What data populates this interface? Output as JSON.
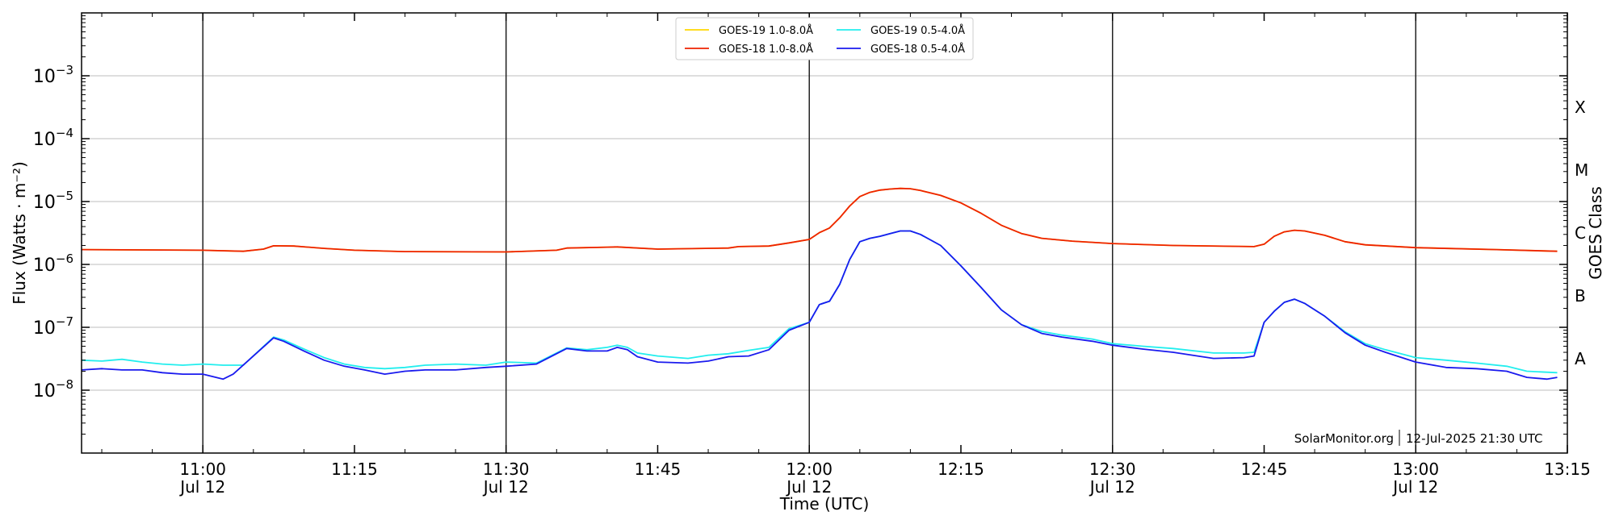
{
  "chart_data": {
    "type": "line",
    "xlabel": "Time (UTC)",
    "ylabel": "Flux (Watts · m⁻²)",
    "right_label": "GOES Class",
    "xlim": [
      "10:48",
      "13:15"
    ],
    "ylim": [
      1e-09,
      0.01
    ],
    "y_scale": "log",
    "grid": "horizontal",
    "legend_position": "top-center",
    "x_ticks": [
      {
        "time": "11:00",
        "date": "Jul 12"
      },
      {
        "time": "11:15",
        "date": ""
      },
      {
        "time": "11:30",
        "date": "Jul 12"
      },
      {
        "time": "11:45",
        "date": ""
      },
      {
        "time": "12:00",
        "date": "Jul 12"
      },
      {
        "time": "12:15",
        "date": ""
      },
      {
        "time": "12:30",
        "date": "Jul 12"
      },
      {
        "time": "12:45",
        "date": ""
      },
      {
        "time": "13:00",
        "date": "Jul 12"
      },
      {
        "time": "13:15",
        "date": ""
      }
    ],
    "y_ticks": [
      {
        "value": 1e-08,
        "label": "10",
        "exp": "−8"
      },
      {
        "value": 1e-07,
        "label": "10",
        "exp": "−7"
      },
      {
        "value": 1e-06,
        "label": "10",
        "exp": "−6"
      },
      {
        "value": 1e-05,
        "label": "10",
        "exp": "−5"
      },
      {
        "value": 0.0001,
        "label": "10",
        "exp": "−4"
      },
      {
        "value": 0.001,
        "label": "10",
        "exp": "−3"
      }
    ],
    "goes_classes": [
      {
        "label": "A",
        "value": 1e-08
      },
      {
        "label": "B",
        "value": 1e-07
      },
      {
        "label": "C",
        "value": 1e-06
      },
      {
        "label": "M",
        "value": 1e-05
      },
      {
        "label": "X",
        "value": 0.0001
      }
    ],
    "vertical_lines": [
      "11:00",
      "11:30",
      "12:00",
      "12:30",
      "13:00"
    ],
    "credit": "SolarMonitor.org",
    "credit_date": "12-Jul-2025 21:30 UTC",
    "series": [
      {
        "name": "GOES-19 1.0-8.0Å",
        "color": "#ffd700",
        "points": [
          [
            "10:48",
            1.72e-06
          ],
          [
            "11:00",
            1.68e-06
          ],
          [
            "11:04",
            1.62e-06
          ],
          [
            "11:06",
            1.75e-06
          ],
          [
            "11:07",
            1.98e-06
          ],
          [
            "11:09",
            1.96e-06
          ],
          [
            "11:12",
            1.8e-06
          ],
          [
            "11:15",
            1.68e-06
          ],
          [
            "11:20",
            1.6e-06
          ],
          [
            "11:30",
            1.58e-06
          ],
          [
            "11:35",
            1.68e-06
          ],
          [
            "11:36",
            1.82e-06
          ],
          [
            "11:40",
            1.88e-06
          ],
          [
            "11:41",
            1.9e-06
          ],
          [
            "11:45",
            1.75e-06
          ],
          [
            "11:52",
            1.82e-06
          ],
          [
            "11:53",
            1.92e-06
          ],
          [
            "11:56",
            1.96e-06
          ],
          [
            "11:58",
            2.2e-06
          ],
          [
            "12:00",
            2.5e-06
          ],
          [
            "12:01",
            3.2e-06
          ],
          [
            "12:02",
            3.8e-06
          ],
          [
            "12:03",
            5.5e-06
          ],
          [
            "12:04",
            8.5e-06
          ],
          [
            "12:05",
            1.2e-05
          ],
          [
            "12:06",
            1.4e-05
          ],
          [
            "12:07",
            1.52e-05
          ],
          [
            "12:08",
            1.58e-05
          ],
          [
            "12:09",
            1.62e-05
          ],
          [
            "12:10",
            1.6e-05
          ],
          [
            "12:11",
            1.5e-05
          ],
          [
            "12:13",
            1.25e-05
          ],
          [
            "12:15",
            9.5e-06
          ],
          [
            "12:17",
            6.5e-06
          ],
          [
            "12:19",
            4.2e-06
          ],
          [
            "12:21",
            3.1e-06
          ],
          [
            "12:23",
            2.6e-06
          ],
          [
            "12:26",
            2.35e-06
          ],
          [
            "12:30",
            2.15e-06
          ],
          [
            "12:36",
            2e-06
          ],
          [
            "12:44",
            1.92e-06
          ],
          [
            "12:45",
            2.1e-06
          ],
          [
            "12:46",
            2.8e-06
          ],
          [
            "12:47",
            3.3e-06
          ],
          [
            "12:48",
            3.5e-06
          ],
          [
            "12:49",
            3.4e-06
          ],
          [
            "12:51",
            2.9e-06
          ],
          [
            "12:53",
            2.3e-06
          ],
          [
            "12:55",
            2.05e-06
          ],
          [
            "13:00",
            1.85e-06
          ],
          [
            "13:08",
            1.72e-06
          ],
          [
            "13:14",
            1.62e-06
          ]
        ]
      },
      {
        "name": "GOES-18 1.0-8.0Å",
        "color": "#ee2200",
        "points": [
          [
            "10:48",
            1.72e-06
          ],
          [
            "11:00",
            1.68e-06
          ],
          [
            "11:04",
            1.62e-06
          ],
          [
            "11:06",
            1.75e-06
          ],
          [
            "11:07",
            1.98e-06
          ],
          [
            "11:09",
            1.96e-06
          ],
          [
            "11:12",
            1.8e-06
          ],
          [
            "11:15",
            1.68e-06
          ],
          [
            "11:20",
            1.6e-06
          ],
          [
            "11:30",
            1.58e-06
          ],
          [
            "11:35",
            1.68e-06
          ],
          [
            "11:36",
            1.82e-06
          ],
          [
            "11:40",
            1.88e-06
          ],
          [
            "11:41",
            1.9e-06
          ],
          [
            "11:45",
            1.75e-06
          ],
          [
            "11:52",
            1.82e-06
          ],
          [
            "11:53",
            1.92e-06
          ],
          [
            "11:56",
            1.96e-06
          ],
          [
            "11:58",
            2.2e-06
          ],
          [
            "12:00",
            2.5e-06
          ],
          [
            "12:01",
            3.2e-06
          ],
          [
            "12:02",
            3.8e-06
          ],
          [
            "12:03",
            5.5e-06
          ],
          [
            "12:04",
            8.5e-06
          ],
          [
            "12:05",
            1.2e-05
          ],
          [
            "12:06",
            1.4e-05
          ],
          [
            "12:07",
            1.52e-05
          ],
          [
            "12:08",
            1.58e-05
          ],
          [
            "12:09",
            1.62e-05
          ],
          [
            "12:10",
            1.6e-05
          ],
          [
            "12:11",
            1.5e-05
          ],
          [
            "12:13",
            1.25e-05
          ],
          [
            "12:15",
            9.5e-06
          ],
          [
            "12:17",
            6.5e-06
          ],
          [
            "12:19",
            4.2e-06
          ],
          [
            "12:21",
            3.1e-06
          ],
          [
            "12:23",
            2.6e-06
          ],
          [
            "12:26",
            2.35e-06
          ],
          [
            "12:30",
            2.15e-06
          ],
          [
            "12:36",
            2e-06
          ],
          [
            "12:44",
            1.92e-06
          ],
          [
            "12:45",
            2.1e-06
          ],
          [
            "12:46",
            2.8e-06
          ],
          [
            "12:47",
            3.3e-06
          ],
          [
            "12:48",
            3.5e-06
          ],
          [
            "12:49",
            3.4e-06
          ],
          [
            "12:51",
            2.9e-06
          ],
          [
            "12:53",
            2.3e-06
          ],
          [
            "12:55",
            2.05e-06
          ],
          [
            "13:00",
            1.85e-06
          ],
          [
            "13:08",
            1.72e-06
          ],
          [
            "13:14",
            1.62e-06
          ]
        ]
      },
      {
        "name": "GOES-19 0.5-4.0Å",
        "color": "#22eeee",
        "points": [
          [
            "10:48",
            3e-08
          ],
          [
            "10:50",
            2.9e-08
          ],
          [
            "10:52",
            3.1e-08
          ],
          [
            "10:54",
            2.8e-08
          ],
          [
            "10:56",
            2.6e-08
          ],
          [
            "10:58",
            2.5e-08
          ],
          [
            "11:00",
            2.6e-08
          ],
          [
            "11:02",
            2.5e-08
          ],
          [
            "11:04",
            2.5e-08
          ],
          [
            "11:07",
            7e-08
          ],
          [
            "11:08",
            6.3e-08
          ],
          [
            "11:10",
            4.5e-08
          ],
          [
            "11:12",
            3.3e-08
          ],
          [
            "11:14",
            2.6e-08
          ],
          [
            "11:16",
            2.3e-08
          ],
          [
            "11:18",
            2.2e-08
          ],
          [
            "11:20",
            2.3e-08
          ],
          [
            "11:22",
            2.5e-08
          ],
          [
            "11:25",
            2.6e-08
          ],
          [
            "11:28",
            2.5e-08
          ],
          [
            "11:30",
            2.8e-08
          ],
          [
            "11:33",
            2.7e-08
          ],
          [
            "11:36",
            4.7e-08
          ],
          [
            "11:38",
            4.4e-08
          ],
          [
            "11:40",
            4.8e-08
          ],
          [
            "11:41",
            5.2e-08
          ],
          [
            "11:42",
            4.8e-08
          ],
          [
            "11:43",
            3.9e-08
          ],
          [
            "11:45",
            3.5e-08
          ],
          [
            "11:48",
            3.2e-08
          ],
          [
            "11:50",
            3.6e-08
          ],
          [
            "11:52",
            3.8e-08
          ],
          [
            "11:54",
            4.3e-08
          ],
          [
            "11:56",
            4.8e-08
          ],
          [
            "11:58",
            9.5e-08
          ],
          [
            "12:00",
            1.2e-07
          ],
          [
            "12:01",
            2.3e-07
          ],
          [
            "12:02",
            2.6e-07
          ],
          [
            "12:03",
            4.8e-07
          ],
          [
            "12:04",
            1.2e-06
          ],
          [
            "12:05",
            2.3e-06
          ],
          [
            "12:06",
            2.6e-06
          ],
          [
            "12:07",
            2.8e-06
          ],
          [
            "12:08",
            3.1e-06
          ],
          [
            "12:09",
            3.4e-06
          ],
          [
            "12:10",
            3.4e-06
          ],
          [
            "12:11",
            3e-06
          ],
          [
            "12:13",
            2e-06
          ],
          [
            "12:15",
            9.5e-07
          ],
          [
            "12:17",
            4.3e-07
          ],
          [
            "12:19",
            1.9e-07
          ],
          [
            "12:21",
            1.1e-07
          ],
          [
            "12:23",
            8.6e-08
          ],
          [
            "12:25",
            7.5e-08
          ],
          [
            "12:28",
            6.5e-08
          ],
          [
            "12:30",
            5.5e-08
          ],
          [
            "12:33",
            5e-08
          ],
          [
            "12:36",
            4.6e-08
          ],
          [
            "12:40",
            3.9e-08
          ],
          [
            "12:43",
            3.9e-08
          ],
          [
            "12:44",
            4e-08
          ],
          [
            "12:45",
            1.2e-07
          ],
          [
            "12:46",
            1.8e-07
          ],
          [
            "12:47",
            2.5e-07
          ],
          [
            "12:48",
            2.8e-07
          ],
          [
            "12:49",
            2.4e-07
          ],
          [
            "12:51",
            1.5e-07
          ],
          [
            "12:53",
            8.5e-08
          ],
          [
            "12:55",
            5.5e-08
          ],
          [
            "12:57",
            4.4e-08
          ],
          [
            "13:00",
            3.3e-08
          ],
          [
            "13:03",
            3e-08
          ],
          [
            "13:06",
            2.7e-08
          ],
          [
            "13:09",
            2.4e-08
          ],
          [
            "13:11",
            2e-08
          ],
          [
            "13:14",
            1.9e-08
          ]
        ]
      },
      {
        "name": "GOES-18 0.5-4.0Å",
        "color": "#1a1aee",
        "points": [
          [
            "10:48",
            2.1e-08
          ],
          [
            "10:50",
            2.2e-08
          ],
          [
            "10:52",
            2.1e-08
          ],
          [
            "10:54",
            2.1e-08
          ],
          [
            "10:56",
            1.9e-08
          ],
          [
            "10:58",
            1.8e-08
          ],
          [
            "11:00",
            1.8e-08
          ],
          [
            "11:02",
            1.5e-08
          ],
          [
            "11:03",
            1.8e-08
          ],
          [
            "11:07",
            6.8e-08
          ],
          [
            "11:08",
            6e-08
          ],
          [
            "11:10",
            4.2e-08
          ],
          [
            "11:12",
            3e-08
          ],
          [
            "11:14",
            2.4e-08
          ],
          [
            "11:16",
            2.1e-08
          ],
          [
            "11:18",
            1.8e-08
          ],
          [
            "11:20",
            2e-08
          ],
          [
            "11:22",
            2.1e-08
          ],
          [
            "11:25",
            2.1e-08
          ],
          [
            "11:28",
            2.3e-08
          ],
          [
            "11:30",
            2.4e-08
          ],
          [
            "11:33",
            2.6e-08
          ],
          [
            "11:36",
            4.6e-08
          ],
          [
            "11:38",
            4.2e-08
          ],
          [
            "11:40",
            4.2e-08
          ],
          [
            "11:41",
            4.8e-08
          ],
          [
            "11:42",
            4.4e-08
          ],
          [
            "11:43",
            3.4e-08
          ],
          [
            "11:45",
            2.8e-08
          ],
          [
            "11:48",
            2.7e-08
          ],
          [
            "11:50",
            2.9e-08
          ],
          [
            "11:52",
            3.4e-08
          ],
          [
            "11:54",
            3.5e-08
          ],
          [
            "11:56",
            4.4e-08
          ],
          [
            "11:58",
            9e-08
          ],
          [
            "12:00",
            1.2e-07
          ],
          [
            "12:01",
            2.3e-07
          ],
          [
            "12:02",
            2.6e-07
          ],
          [
            "12:03",
            4.8e-07
          ],
          [
            "12:04",
            1.2e-06
          ],
          [
            "12:05",
            2.3e-06
          ],
          [
            "12:06",
            2.6e-06
          ],
          [
            "12:07",
            2.8e-06
          ],
          [
            "12:08",
            3.1e-06
          ],
          [
            "12:09",
            3.4e-06
          ],
          [
            "12:10",
            3.4e-06
          ],
          [
            "12:11",
            3e-06
          ],
          [
            "12:13",
            2e-06
          ],
          [
            "12:15",
            9.5e-07
          ],
          [
            "12:17",
            4.3e-07
          ],
          [
            "12:19",
            1.9e-07
          ],
          [
            "12:21",
            1.1e-07
          ],
          [
            "12:23",
            8e-08
          ],
          [
            "12:25",
            7e-08
          ],
          [
            "12:28",
            6e-08
          ],
          [
            "12:30",
            5.2e-08
          ],
          [
            "12:33",
            4.5e-08
          ],
          [
            "12:36",
            4e-08
          ],
          [
            "12:40",
            3.2e-08
          ],
          [
            "12:43",
            3.3e-08
          ],
          [
            "12:44",
            3.5e-08
          ],
          [
            "12:45",
            1.2e-07
          ],
          [
            "12:46",
            1.8e-07
          ],
          [
            "12:47",
            2.5e-07
          ],
          [
            "12:48",
            2.8e-07
          ],
          [
            "12:49",
            2.4e-07
          ],
          [
            "12:51",
            1.5e-07
          ],
          [
            "12:53",
            8.2e-08
          ],
          [
            "12:55",
            5.2e-08
          ],
          [
            "12:57",
            4e-08
          ],
          [
            "13:00",
            2.8e-08
          ],
          [
            "13:03",
            2.3e-08
          ],
          [
            "13:06",
            2.2e-08
          ],
          [
            "13:09",
            2e-08
          ],
          [
            "13:11",
            1.6e-08
          ],
          [
            "13:13",
            1.5e-08
          ],
          [
            "13:14",
            1.6e-08
          ]
        ]
      }
    ]
  }
}
